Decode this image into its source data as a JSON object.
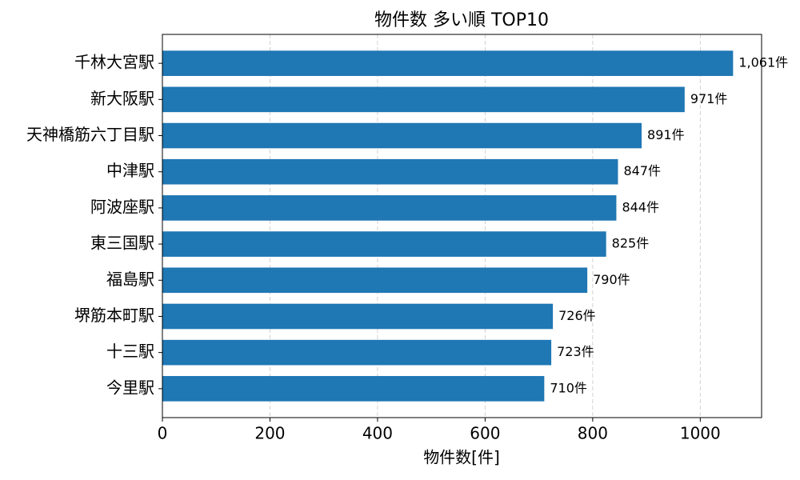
{
  "chart_data": {
    "type": "bar",
    "orientation": "horizontal",
    "title": "物件数 多い順 TOP10",
    "x_label": "物件数[件]",
    "categories": [
      "千林大宮駅",
      "新大阪駅",
      "天神橋筋六丁目駅",
      "中津駅",
      "阿波座駅",
      "東三国駅",
      "福島駅",
      "堺筋本町駅",
      "十三駅",
      "今里駅"
    ],
    "values": [
      1061,
      971,
      891,
      847,
      844,
      825,
      790,
      726,
      723,
      710
    ],
    "value_labels": [
      "1,061件",
      "971件",
      "891件",
      "847件",
      "844件",
      "825件",
      "790件",
      "726件",
      "723件",
      "710件"
    ],
    "color": "#1f77b4",
    "xlim": [
      0,
      1114.05
    ],
    "xticks": [
      0,
      200,
      400,
      600,
      800,
      1000
    ],
    "grid": true
  }
}
